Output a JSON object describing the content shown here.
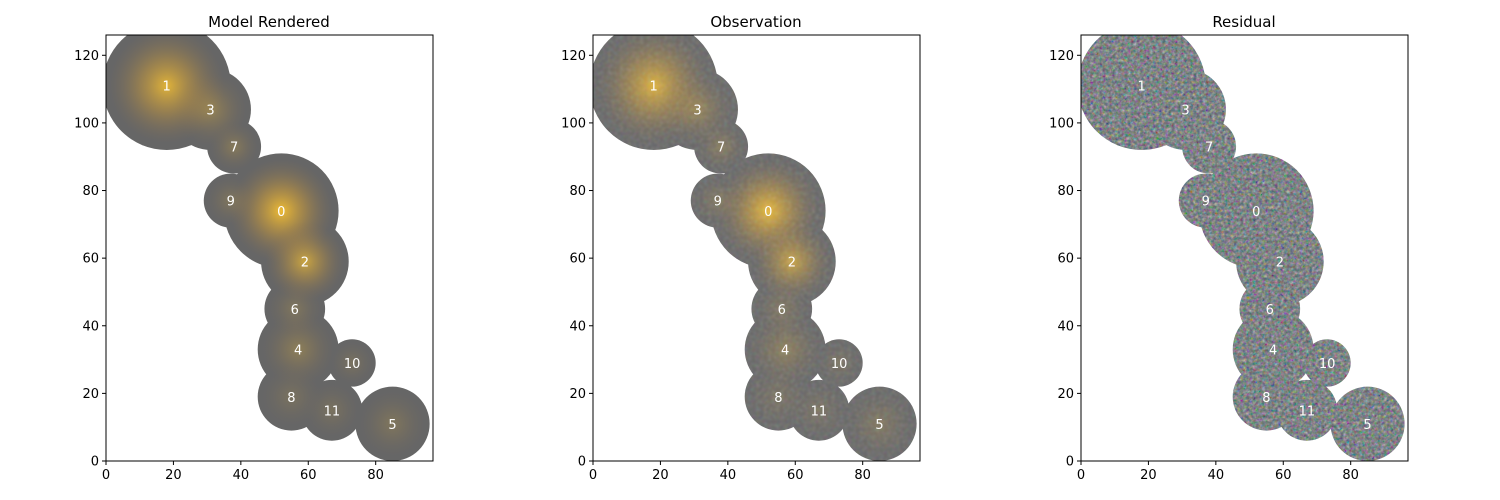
{
  "figure": {
    "panels": [
      {
        "id": "model",
        "title": "Model Rendered",
        "xticks": [
          "0",
          "20",
          "40",
          "60",
          "80"
        ],
        "yticks": [
          "0",
          "20",
          "40",
          "60",
          "80",
          "100",
          "120"
        ],
        "xlim": [
          0,
          97
        ],
        "ylim": [
          0,
          126
        ],
        "style": "model"
      },
      {
        "id": "observation",
        "title": "Observation",
        "xticks": [
          "0",
          "20",
          "40",
          "60",
          "80"
        ],
        "yticks": [
          "0",
          "20",
          "40",
          "60",
          "80",
          "100",
          "120"
        ],
        "xlim": [
          0,
          97
        ],
        "ylim": [
          0,
          126
        ],
        "style": "observation"
      },
      {
        "id": "residual",
        "title": "Residual",
        "xticks": [
          "0",
          "20",
          "40",
          "60",
          "80"
        ],
        "yticks": [
          "0",
          "20",
          "40",
          "60",
          "80",
          "100",
          "120"
        ],
        "xlim": [
          0,
          97
        ],
        "ylim": [
          0,
          126
        ],
        "style": "residual"
      }
    ],
    "sources": [
      {
        "label": "0",
        "x": 52,
        "y": 74,
        "r": 17,
        "peak": 1.0
      },
      {
        "label": "1",
        "x": 18,
        "y": 111,
        "r": 19,
        "peak": 0.9
      },
      {
        "label": "2",
        "x": 59,
        "y": 59,
        "r": 13,
        "peak": 0.75
      },
      {
        "label": "3",
        "x": 31,
        "y": 104,
        "r": 12,
        "peak": 0.35
      },
      {
        "label": "4",
        "x": 57,
        "y": 33,
        "r": 12,
        "peak": 0.3
      },
      {
        "label": "5",
        "x": 85,
        "y": 11,
        "r": 11,
        "peak": 0.2
      },
      {
        "label": "6",
        "x": 56,
        "y": 45,
        "r": 9,
        "peak": 0.2
      },
      {
        "label": "7",
        "x": 38,
        "y": 93,
        "r": 8,
        "peak": 0.25
      },
      {
        "label": "8",
        "x": 55,
        "y": 19,
        "r": 10,
        "peak": 0.15
      },
      {
        "label": "9",
        "x": 37,
        "y": 77,
        "r": 8,
        "peak": 0.2
      },
      {
        "label": "10",
        "x": 73,
        "y": 29,
        "r": 7,
        "peak": 0.15
      },
      {
        "label": "11",
        "x": 67,
        "y": 15,
        "r": 9,
        "peak": 0.15
      }
    ],
    "colors": {
      "background": "#ffffff",
      "footprint": "#666666",
      "glow": "#f5c032",
      "label": "#ffffff"
    }
  }
}
